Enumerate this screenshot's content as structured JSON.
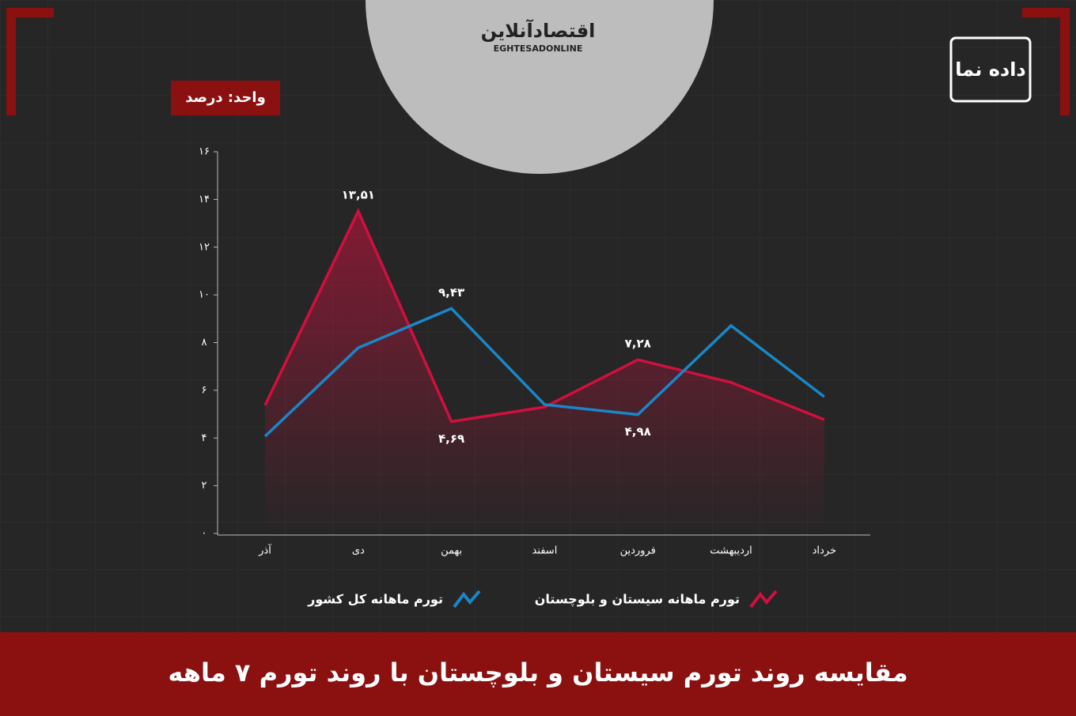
{
  "header": {
    "logo": "اقتصادآنلاین",
    "logo_latin": "EGHTESADONLINE",
    "brand": "داده نما"
  },
  "chart_data": {
    "type": "line",
    "unit_label": "واحد: درصد",
    "title": "مقایسه روند تورم سیستان و بلوچستان با روند تورم ۷ ماهه",
    "categories": [
      "آذر",
      "دی",
      "بهمن",
      "اسفند",
      "فروردین",
      "اردیبهشت",
      "خرداد"
    ],
    "series": [
      {
        "name": "تورم ماهانه سیستان و بلوچستان",
        "color": "#d0103f",
        "values": [
          5.37,
          13.51,
          4.69,
          5.3,
          7.28,
          6.33,
          4.77
        ],
        "value_labels": [
          null,
          "۱۳,۵۱",
          "۴,۶۹",
          null,
          "۷,۲۸",
          null,
          null
        ]
      },
      {
        "name": "تورم ماهانه کل کشور",
        "color": "#1a86c8",
        "values": [
          4.07,
          7.78,
          9.43,
          5.4,
          4.98,
          8.71,
          5.73
        ],
        "value_labels": [
          null,
          null,
          "۹,۴۳",
          null,
          "۴,۹۸",
          null,
          null
        ]
      }
    ],
    "ylim": [
      0,
      16
    ],
    "yticks": [
      {
        "value": 0,
        "label": "۰"
      },
      {
        "value": 2,
        "label": "۲"
      },
      {
        "value": 4,
        "label": "۴"
      },
      {
        "value": 6,
        "label": "۶"
      },
      {
        "value": 8,
        "label": "۸"
      },
      {
        "value": 10,
        "label": "۱۰"
      },
      {
        "value": 12,
        "label": "۱۲"
      },
      {
        "value": 14,
        "label": "۱۴"
      },
      {
        "value": 16,
        "label": "۱۶"
      }
    ],
    "grid": false
  }
}
